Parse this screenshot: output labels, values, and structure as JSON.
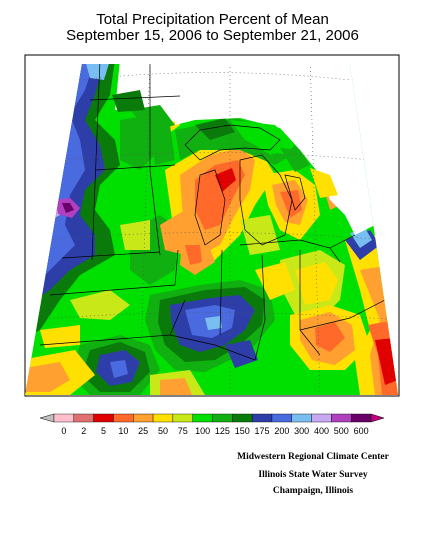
{
  "title_line1": "Total Precipitation Percent of Mean",
  "title_line2": "September 15, 2006 to September 21, 2006",
  "legend": {
    "ticks": [
      "0",
      "2",
      "5",
      "10",
      "25",
      "50",
      "75",
      "100",
      "125",
      "150",
      "175",
      "200",
      "300",
      "400",
      "500",
      "600"
    ],
    "colors": [
      "#ffc0cb",
      "#e07070",
      "#e00000",
      "#ff6a2a",
      "#ffa030",
      "#ffe000",
      "#c8e818",
      "#00e000",
      "#10b010",
      "#0a7a0a",
      "#2e3ea8",
      "#4a6ae0",
      "#78bef0",
      "#c8a8f0",
      "#b040c0",
      "#6a006a"
    ],
    "under_color": "#c0c0c0",
    "over_color": "#c0007a"
  },
  "credits": [
    "Midwestern Regional Climate Center",
    "Illinois State Water Survey",
    "Champaign, Illinois"
  ]
}
